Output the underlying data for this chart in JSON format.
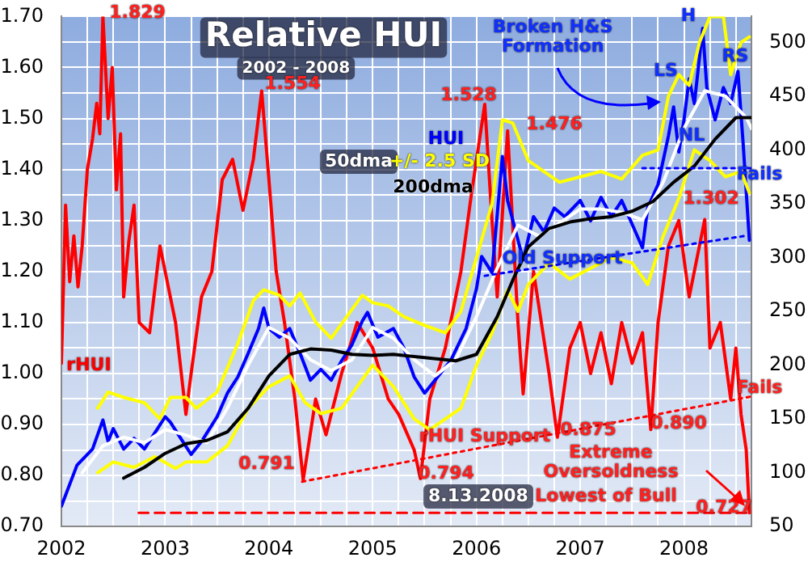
{
  "chart_data": {
    "type": "line",
    "title": "Relative HUI",
    "subtitle": "2002 - 2008",
    "xlim": [
      2002,
      2008.65
    ],
    "xticks": [
      2002,
      {
        "value": 2002.25,
        "label": null
      },
      {
        "value": 2002.5,
        "label": null
      },
      {
        "value": 2002.75,
        "label": null
      },
      2003,
      {
        "value": 2003.25,
        "label": null
      },
      {
        "value": 2003.5,
        "label": null
      },
      {
        "value": 2003.75,
        "label": null
      },
      2004,
      {
        "value": 2004.25,
        "label": null
      },
      {
        "value": 2004.5,
        "label": null
      },
      {
        "value": 2004.75,
        "label": null
      },
      2005,
      {
        "value": 2005.25,
        "label": null
      },
      {
        "value": 2005.5,
        "label": null
      },
      {
        "value": 2005.75,
        "label": null
      },
      2006,
      {
        "value": 2006.25,
        "label": null
      },
      {
        "value": 2006.5,
        "label": null
      },
      {
        "value": 2006.75,
        "label": null
      },
      2007,
      {
        "value": 2007.25,
        "label": null
      },
      {
        "value": 2007.5,
        "label": null
      },
      {
        "value": 2007.75,
        "label": null
      },
      2008,
      {
        "value": 2008.25,
        "label": null
      },
      {
        "value": 2008.5,
        "label": null
      }
    ],
    "ylim": [
      0.7,
      1.7
    ],
    "yticks": [
      {
        "value": 0.7,
        "label": "0.70"
      },
      {
        "value": 0.75,
        "label": null
      },
      {
        "value": 0.8,
        "label": "0.80"
      },
      {
        "value": 0.85,
        "label": null
      },
      {
        "value": 0.9,
        "label": "0.90"
      },
      {
        "value": 0.95,
        "label": null
      },
      {
        "value": 1.0,
        "label": "1.00"
      },
      {
        "value": 1.05,
        "label": null
      },
      {
        "value": 1.1,
        "label": "1.10"
      },
      {
        "value": 1.15,
        "label": null
      },
      {
        "value": 1.2,
        "label": "1.20"
      },
      {
        "value": 1.25,
        "label": null
      },
      {
        "value": 1.3,
        "label": "1.30"
      },
      {
        "value": 1.35,
        "label": null
      },
      {
        "value": 1.4,
        "label": "1.40"
      },
      {
        "value": 1.45,
        "label": null
      },
      {
        "value": 1.5,
        "label": "1.50"
      },
      {
        "value": 1.55,
        "label": null
      },
      {
        "value": 1.6,
        "label": "1.60"
      },
      {
        "value": 1.65,
        "label": null
      },
      {
        "value": 1.7,
        "label": "1.70"
      }
    ],
    "y2lim": [
      50,
      524
    ],
    "y2ticks": [
      50,
      100,
      150,
      200,
      250,
      300,
      350,
      400,
      450,
      500
    ],
    "grid": true,
    "legend": false,
    "marker": "none",
    "line_style": "solid",
    "series": [
      {
        "name": "rHUI",
        "color": "#ff0000",
        "x": [
          2002.0,
          2002.04,
          2002.08,
          2002.12,
          2002.16,
          2002.2,
          2002.25,
          2002.3,
          2002.34,
          2002.37,
          2002.4,
          2002.45,
          2002.49,
          2002.53,
          2002.57,
          2002.6,
          2002.65,
          2002.7,
          2002.75,
          2002.85,
          2002.95,
          2003.0,
          2003.1,
          2003.2,
          2003.25,
          2003.35,
          2003.45,
          2003.55,
          2003.65,
          2003.75,
          2003.85,
          2003.93,
          2004.0,
          2004.07,
          2004.15,
          2004.25,
          2004.33,
          2004.45,
          2004.55,
          2004.7,
          2004.85,
          2005.0,
          2005.15,
          2005.25,
          2005.4,
          2005.46,
          2005.55,
          2005.7,
          2005.85,
          2005.95,
          2006.08,
          2006.15,
          2006.2,
          2006.3,
          2006.4,
          2006.45,
          2006.55,
          2006.7,
          2006.78,
          2006.9,
          2007.0,
          2007.1,
          2007.2,
          2007.3,
          2007.4,
          2007.5,
          2007.6,
          2007.68,
          2007.75,
          2007.85,
          2007.95,
          2008.05,
          2008.2,
          2008.25,
          2008.35,
          2008.45,
          2008.5,
          2008.55,
          2008.6,
          2008.63
        ],
        "values": [
          1.02,
          1.33,
          1.18,
          1.27,
          1.17,
          1.25,
          1.4,
          1.46,
          1.53,
          1.47,
          1.7,
          1.5,
          1.6,
          1.36,
          1.47,
          1.15,
          1.26,
          1.33,
          1.1,
          1.08,
          1.25,
          1.2,
          1.1,
          0.92,
          1.0,
          1.15,
          1.2,
          1.38,
          1.42,
          1.32,
          1.42,
          1.554,
          1.38,
          1.2,
          1.1,
          0.95,
          0.791,
          0.95,
          0.88,
          1.0,
          1.1,
          1.05,
          0.95,
          0.92,
          0.85,
          0.794,
          0.95,
          1.05,
          1.2,
          1.35,
          1.528,
          1.3,
          1.15,
          1.476,
          1.1,
          0.96,
          1.2,
          1.0,
          0.875,
          1.05,
          1.1,
          1.0,
          1.08,
          0.98,
          1.1,
          1.02,
          1.08,
          0.89,
          1.1,
          1.25,
          1.3,
          1.15,
          1.302,
          1.05,
          1.1,
          0.95,
          1.05,
          0.92,
          0.85,
          0.727
        ]
      },
      {
        "name": "HUI",
        "color": "#0000ff",
        "axis": "y2",
        "x": [
          2002.0,
          2002.15,
          2002.3,
          2002.4,
          2002.45,
          2002.5,
          2002.6,
          2002.7,
          2002.8,
          2002.9,
          2003.0,
          2003.05,
          2003.15,
          2003.25,
          2003.35,
          2003.5,
          2003.6,
          2003.7,
          2003.8,
          2003.9,
          2003.95,
          2004.0,
          2004.1,
          2004.2,
          2004.3,
          2004.4,
          2004.5,
          2004.6,
          2004.7,
          2004.8,
          2004.9,
          2004.95,
          2005.05,
          2005.2,
          2005.3,
          2005.4,
          2005.5,
          2005.6,
          2005.75,
          2005.9,
          2006.0,
          2006.05,
          2006.15,
          2006.25,
          2006.3,
          2006.45,
          2006.55,
          2006.65,
          2006.75,
          2006.85,
          2007.0,
          2007.1,
          2007.2,
          2007.3,
          2007.4,
          2007.5,
          2007.6,
          2007.65,
          2007.75,
          2007.85,
          2007.9,
          2007.95,
          2008.0,
          2008.05,
          2008.1,
          2008.18,
          2008.22,
          2008.3,
          2008.38,
          2008.45,
          2008.52,
          2008.57,
          2008.63
        ],
        "values": [
          69,
          107,
          122,
          149,
          129,
          141,
          122,
          132,
          122,
          137,
          152,
          147,
          132,
          117,
          129,
          152,
          174,
          189,
          211,
          234,
          253,
          234,
          226,
          234,
          211,
          186,
          196,
          186,
          204,
          219,
          241,
          249,
          226,
          234,
          216,
          189,
          174,
          186,
          204,
          234,
          271,
          301,
          286,
          394,
          353,
          298,
          338,
          324,
          346,
          338,
          353,
          334,
          356,
          338,
          353,
          331,
          309,
          346,
          368,
          413,
          440,
          398,
          428,
          466,
          443,
          513,
          458,
          428,
          458,
          443,
          473,
          406,
          316
        ]
      },
      {
        "name": "50dma",
        "color": "#ffffff",
        "axis": "y2",
        "x": [
          2002.2,
          2002.4,
          2002.6,
          2002.8,
          2003.0,
          2003.2,
          2003.4,
          2003.6,
          2003.8,
          2004.0,
          2004.2,
          2004.4,
          2004.6,
          2004.8,
          2005.0,
          2005.2,
          2005.4,
          2005.6,
          2005.8,
          2006.0,
          2006.2,
          2006.4,
          2006.6,
          2006.8,
          2007.0,
          2007.2,
          2007.4,
          2007.6,
          2007.8,
          2008.0,
          2008.2,
          2008.4,
          2008.6,
          2008.65
        ],
        "values": [
          100,
          125,
          133,
          128,
          140,
          135,
          128,
          160,
          200,
          235,
          225,
          205,
          195,
          205,
          235,
          225,
          205,
          190,
          205,
          245,
          290,
          330,
          320,
          332,
          345,
          345,
          342,
          335,
          370,
          420,
          455,
          450,
          430,
          420
        ]
      },
      {
        "name": "+/- 2.5 SD",
        "color": "#ffff00",
        "axis": "y2",
        "x": [
          2002.35,
          2002.45,
          2002.6,
          2002.8,
          2002.95,
          2003.05,
          2003.2,
          2003.3,
          2003.5,
          2003.7,
          2003.85,
          2003.95,
          2004.1,
          2004.2,
          2004.3,
          2004.45,
          2004.6,
          2004.75,
          2004.9,
          2005.0,
          2005.15,
          2005.3,
          2005.5,
          2005.7,
          2005.85,
          2006.0,
          2006.15,
          2006.25,
          2006.35,
          2006.5,
          2006.65,
          2006.8,
          2007.0,
          2007.2,
          2007.4,
          2007.6,
          2007.75,
          2007.85,
          2007.95,
          2008.05,
          2008.15,
          2008.25,
          2008.38,
          2008.45,
          2008.55,
          2008.63
        ],
        "values": [
          160,
          175,
          170,
          165,
          150,
          170,
          170,
          160,
          175,
          220,
          260,
          270,
          265,
          255,
          267,
          240,
          225,
          245,
          265,
          258,
          255,
          245,
          237,
          230,
          250,
          300,
          350,
          428,
          425,
          390,
          380,
          370,
          375,
          380,
          373,
          395,
          400,
          450,
          470,
          460,
          500,
          524,
          524,
          470,
          500,
          505
        ]
      },
      {
        "color": "#ffff00",
        "axis": "y2",
        "x": [
          2002.35,
          2002.5,
          2002.7,
          2002.9,
          2003.1,
          2003.2,
          2003.4,
          2003.6,
          2003.8,
          2004.0,
          2004.2,
          2004.35,
          2004.5,
          2004.7,
          2004.85,
          2005.0,
          2005.2,
          2005.4,
          2005.55,
          2005.7,
          2005.85,
          2006.0,
          2006.15,
          2006.3,
          2006.4,
          2006.5,
          2006.7,
          2006.9,
          2007.1,
          2007.3,
          2007.5,
          2007.65,
          2007.8,
          2007.95,
          2008.1,
          2008.25,
          2008.4,
          2008.55,
          2008.63
        ],
        "values": [
          100,
          110,
          105,
          115,
          104,
          110,
          110,
          125,
          160,
          180,
          190,
          165,
          155,
          160,
          180,
          200,
          180,
          150,
          140,
          150,
          160,
          200,
          230,
          270,
          250,
          275,
          295,
          280,
          290,
          300,
          295,
          275,
          320,
          355,
          400,
          390,
          375,
          380,
          360
        ]
      },
      {
        "name": "200dma",
        "color": "#000000",
        "axis": "y2",
        "x": [
          2002.6,
          2002.8,
          2003.0,
          2003.2,
          2003.4,
          2003.6,
          2003.8,
          2004.0,
          2004.2,
          2004.4,
          2004.6,
          2004.8,
          2005.0,
          2005.2,
          2005.5,
          2005.8,
          2006.0,
          2006.2,
          2006.35,
          2006.5,
          2006.7,
          2006.9,
          2007.1,
          2007.3,
          2007.5,
          2007.7,
          2007.9,
          2008.1,
          2008.3,
          2008.5,
          2008.65
        ],
        "values": [
          95,
          105,
          118,
          127,
          130,
          138,
          160,
          190,
          210,
          215,
          214,
          210,
          209,
          210,
          207,
          204,
          210,
          245,
          279,
          310,
          327,
          333,
          336,
          338,
          343,
          352,
          370,
          385,
          410,
          430,
          430
        ]
      },
      {
        "color": "#ff0000",
        "line_style": "dotted",
        "x": [
          2004.32,
          2008.65
        ],
        "values": [
          0.788,
          0.955
        ]
      },
      {
        "color": "#0000ff",
        "line_style": "dotted",
        "axis": "y2",
        "x": [
          2006.08,
          2008.58
        ],
        "values": [
          283,
          320
        ]
      },
      {
        "color": "#0000ff",
        "line_style": "dotted",
        "axis": "y2",
        "x": [
          2007.6,
          2008.65
        ],
        "values": [
          383,
          383
        ]
      },
      {
        "color": "#ff0000",
        "line_style": "dashed",
        "x": [
          2008.6,
          2002.7
        ],
        "values": [
          0.727,
          0.727
        ]
      }
    ],
    "annotations": [
      "1.829",
      "1.554",
      "1.528",
      "1.476",
      "1.302",
      "0.791",
      "0.794",
      "0.875",
      "0.890",
      "0.727",
      "Broken H&S Formation",
      "LS",
      "H",
      "RS",
      "NL",
      "Fails",
      "Old Support",
      "Fails",
      "rHUI Support",
      "Extreme Oversoldness",
      "Lowest of Bull",
      "8.13.2008"
    ]
  }
}
